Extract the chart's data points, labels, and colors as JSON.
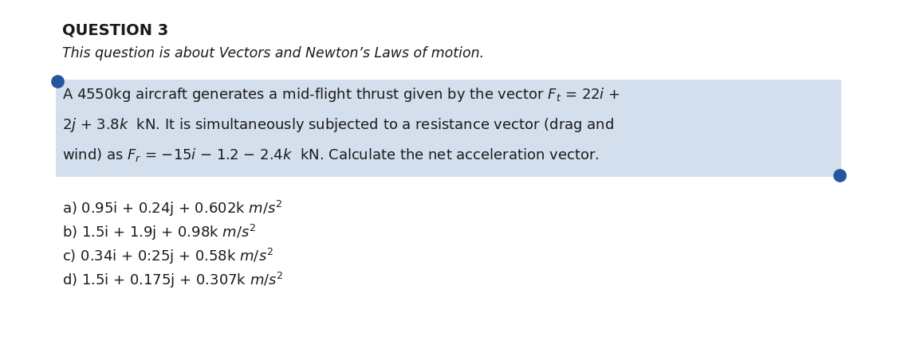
{
  "title": "QUESTION 3",
  "subtitle": "This question is about Vectors and Newton’s Laws of motion.",
  "line1": "A 4550kg aircraft generates a mid-flight thrust given by the vector $F_t$ = 22$i$ +",
  "line2": "2$j$ + 3.8$k$  kN. It is simultaneously subjected to a resistance vector (drag and",
  "line3": "wind) as $F_r$ = $-$15$i$ $-$ 1.2 $-$ 2.4$k$  kN. Calculate the net acceleration vector.",
  "opt_a": "a) 0.95i + 0.24j + 0.602k $m/s^2$",
  "opt_b": "b) 1.5i + 1.9j + 0.98k $m/s^2$",
  "opt_c": "c) 0.34i + 0:25j + 0.58k $m/s^2$",
  "opt_d": "d) 1.5i + 0.175j + 0.307k $m/s^2$",
  "highlight_color": "#c5d5e8",
  "dot_color": "#2755a0",
  "background_color": "#ffffff",
  "text_color": "#1a1a1a",
  "font_size_title": 14,
  "font_size_subtitle": 12.5,
  "font_size_question": 13,
  "font_size_options": 13
}
